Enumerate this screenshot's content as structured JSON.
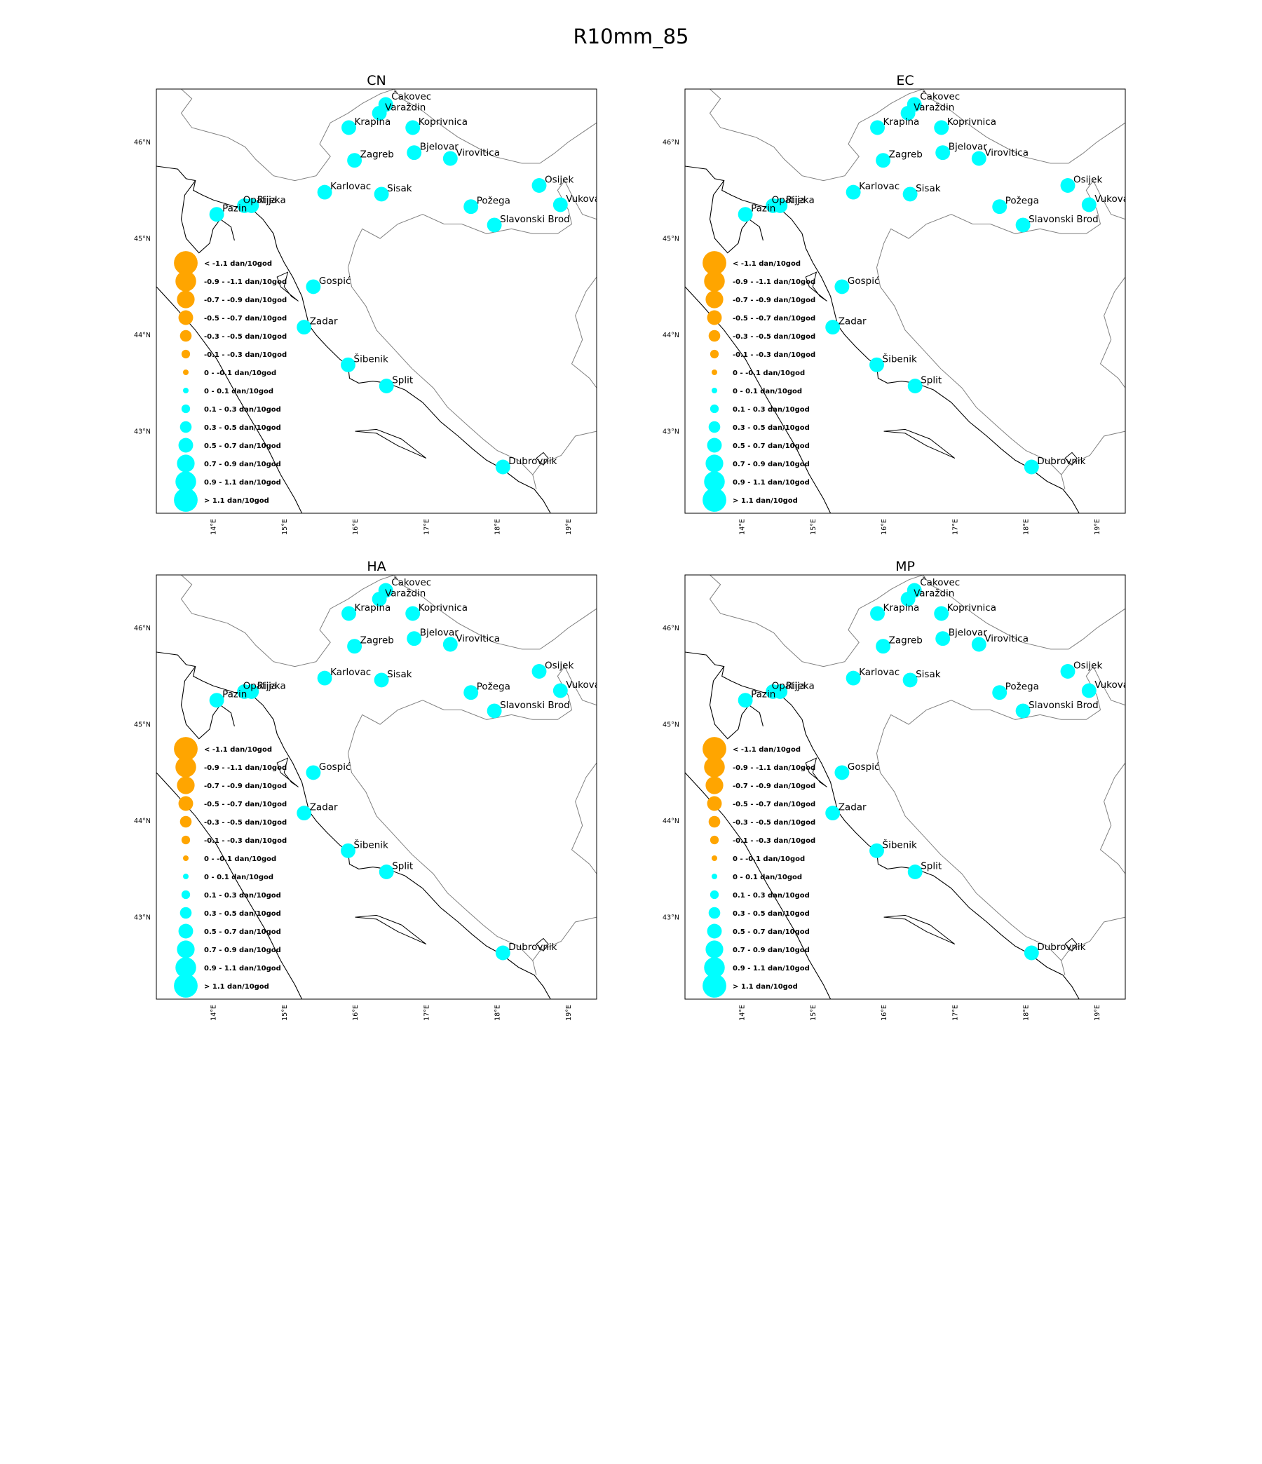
{
  "figure": {
    "title": "R10mm_85"
  },
  "panels": [
    {
      "title": "CN"
    },
    {
      "title": "EC"
    },
    {
      "title": "HA"
    },
    {
      "title": "MP"
    }
  ],
  "axes": {
    "lon_ticks": [
      "14°E",
      "15°E",
      "16°E",
      "17°E",
      "18°E",
      "19°E"
    ],
    "lat_ticks": [
      "46°N",
      "45°N",
      "44°N",
      "43°N"
    ],
    "extent": {
      "lon": [
        13.2,
        19.4
      ],
      "lat": [
        42.15,
        46.55
      ]
    }
  },
  "colors": {
    "negative": "#ffa500",
    "positive": "#00ffff",
    "border": "#808080",
    "coast": "#000000"
  },
  "legend": {
    "items": [
      {
        "label": "< -1.1 dan/10god",
        "sign": "negative",
        "size": 7
      },
      {
        "label": "-0.9 - -1.1 dan/10god",
        "sign": "negative",
        "size": 6
      },
      {
        "label": "-0.7 - -0.9 dan/10god",
        "sign": "negative",
        "size": 5
      },
      {
        "label": "-0.5 - -0.7 dan/10god",
        "sign": "negative",
        "size": 4
      },
      {
        "label": "-0.3 - -0.5 dan/10god",
        "sign": "negative",
        "size": 3
      },
      {
        "label": "-0.1 - -0.3 dan/10god",
        "sign": "negative",
        "size": 2
      },
      {
        "label": "0 - -0.1 dan/10god",
        "sign": "negative",
        "size": 1
      },
      {
        "label": "0 - 0.1 dan/10god",
        "sign": "positive",
        "size": 1
      },
      {
        "label": "0.1 - 0.3 dan/10god",
        "sign": "positive",
        "size": 2
      },
      {
        "label": "0.3 - 0.5 dan/10god",
        "sign": "positive",
        "size": 3
      },
      {
        "label": "0.5 - 0.7 dan/10god",
        "sign": "positive",
        "size": 4
      },
      {
        "label": "0.7 - 0.9 dan/10god",
        "sign": "positive",
        "size": 5
      },
      {
        "label": "0.9 - 1.1 dan/10god",
        "sign": "positive",
        "size": 6
      },
      {
        "label": "> 1.1 dan/10god",
        "sign": "positive",
        "size": 7
      }
    ]
  },
  "stations": [
    {
      "name": "Čakovec",
      "lon": 16.43,
      "lat": 46.39
    },
    {
      "name": "Varaždin",
      "lon": 16.34,
      "lat": 46.3
    },
    {
      "name": "Krapina",
      "lon": 15.91,
      "lat": 46.15
    },
    {
      "name": "Koprivnica",
      "lon": 16.81,
      "lat": 46.15
    },
    {
      "name": "Bjelovar",
      "lon": 16.83,
      "lat": 45.89
    },
    {
      "name": "Virovitica",
      "lon": 17.34,
      "lat": 45.83
    },
    {
      "name": "Zagreb",
      "lon": 15.99,
      "lat": 45.81
    },
    {
      "name": "Osijek",
      "lon": 18.59,
      "lat": 45.55
    },
    {
      "name": "Karlovac",
      "lon": 15.57,
      "lat": 45.48
    },
    {
      "name": "Sisak",
      "lon": 16.37,
      "lat": 45.46
    },
    {
      "name": "Rijeka",
      "lon": 14.54,
      "lat": 45.34
    },
    {
      "name": "Opatija",
      "lon": 14.44,
      "lat": 45.34
    },
    {
      "name": "Požega",
      "lon": 17.63,
      "lat": 45.33
    },
    {
      "name": "Vukovar",
      "lon": 18.89,
      "lat": 45.35
    },
    {
      "name": "Pazin",
      "lon": 14.05,
      "lat": 45.25
    },
    {
      "name": "Slavonski Brod",
      "lon": 17.96,
      "lat": 45.14
    },
    {
      "name": "Gospić",
      "lon": 15.41,
      "lat": 44.5
    },
    {
      "name": "Zadar",
      "lon": 15.28,
      "lat": 44.08
    },
    {
      "name": "Šibenik",
      "lon": 15.9,
      "lat": 43.69
    },
    {
      "name": "Split",
      "lon": 16.44,
      "lat": 43.47
    },
    {
      "name": "Dubrovnik",
      "lon": 18.08,
      "lat": 42.63
    }
  ],
  "station_values": {
    "CN": [
      4,
      4,
      4,
      4,
      4,
      4,
      4,
      4,
      4,
      4,
      4,
      4,
      4,
      4,
      4,
      4,
      4,
      4,
      4,
      4,
      4
    ],
    "EC": [
      4,
      4,
      4,
      4,
      4,
      4,
      4,
      4,
      4,
      4,
      4,
      4,
      4,
      4,
      4,
      4,
      4,
      4,
      4,
      4,
      4
    ],
    "HA": [
      4,
      4,
      4,
      4,
      4,
      4,
      4,
      4,
      4,
      4,
      4,
      4,
      4,
      4,
      4,
      4,
      4,
      4,
      4,
      4,
      4
    ],
    "MP": [
      4,
      4,
      4,
      4,
      4,
      4,
      4,
      4,
      4,
      4,
      4,
      4,
      4,
      4,
      4,
      4,
      4,
      4,
      4,
      4,
      4
    ]
  }
}
